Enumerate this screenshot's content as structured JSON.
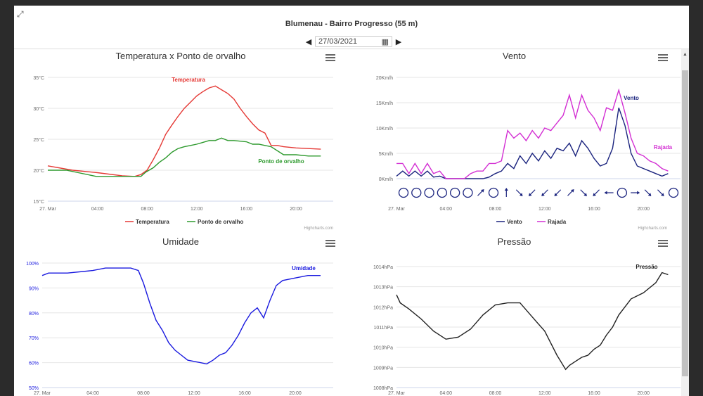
{
  "header": {
    "title": "Blumenau - Bairro Progresso (55 m)",
    "date": "27/03/2021"
  },
  "credit": "Highcharts.com",
  "colors": {
    "temp": "#e53935",
    "dew": "#2e9a2e",
    "wind": "#1a237e",
    "gust": "#d32fd3",
    "humidity": "#1a1adf",
    "pressure": "#222222"
  },
  "x_ticks": [
    "27. Mar",
    "04:00",
    "08:00",
    "12:00",
    "16:00",
    "20:00"
  ],
  "chart_data": [
    {
      "type": "line",
      "title": "Temperatura x Ponto de orvalho",
      "x_unit": "hours",
      "xlim": [
        0,
        23
      ],
      "ylim": [
        15,
        35
      ],
      "y_ticks": [
        "15°C",
        "20°C",
        "25°C",
        "30°C",
        "35°C"
      ],
      "series": [
        {
          "name": "Temperatura",
          "color": "#e53935",
          "x": [
            0,
            2,
            4,
            6,
            7,
            7.5,
            8,
            8.5,
            9,
            9.5,
            10,
            10.5,
            11,
            11.5,
            12,
            12.5,
            13,
            13.5,
            14,
            14.5,
            15,
            15.5,
            16,
            16.5,
            17,
            17.5,
            18,
            18.5,
            19,
            20,
            21,
            22
          ],
          "y": [
            20.7,
            20.0,
            19.6,
            19.1,
            19.0,
            19.3,
            20.0,
            21.7,
            23.6,
            25.8,
            27.3,
            28.7,
            30.0,
            31.0,
            32.0,
            32.7,
            33.3,
            33.6,
            33.0,
            32.4,
            31.5,
            30.0,
            28.7,
            27.5,
            26.5,
            26.0,
            24.0,
            24.0,
            23.8,
            23.6,
            23.5,
            23.4
          ]
        },
        {
          "name": "Ponto de orvalho",
          "color": "#2e9a2e",
          "x": [
            0,
            1.5,
            3.9,
            7.5,
            7.9,
            8.5,
            9,
            9.5,
            10,
            10.5,
            11,
            11.5,
            12,
            12.5,
            13,
            13.5,
            14,
            14.5,
            15,
            16,
            16.5,
            17,
            17.5,
            18,
            19,
            20,
            21,
            22
          ],
          "y": [
            20.0,
            20.0,
            19.0,
            19.0,
            19.7,
            20.4,
            21.3,
            22.0,
            22.9,
            23.5,
            23.8,
            24.0,
            24.2,
            24.5,
            24.8,
            24.8,
            25.2,
            24.8,
            24.8,
            24.6,
            24.2,
            24.2,
            24.0,
            23.8,
            22.5,
            22.5,
            22.3,
            22.3
          ]
        }
      ],
      "annotations": [
        {
          "text": "Temperatura",
          "series": 0
        },
        {
          "text": "Ponto de orvalho",
          "series": 1
        }
      ],
      "legend": [
        "Temperatura",
        "Ponto de orvalho"
      ]
    },
    {
      "type": "line",
      "title": "Vento",
      "x_unit": "hours",
      "xlim": [
        0,
        23
      ],
      "ylim": [
        0,
        20
      ],
      "y_ticks": [
        "0Km/h",
        "5Km/h",
        "10Km/h",
        "15Km/h",
        "20Km/h"
      ],
      "series": [
        {
          "name": "Vento",
          "color": "#1a237e",
          "x": [
            0,
            0.5,
            1,
            1.5,
            2,
            2.5,
            3,
            3.5,
            4,
            4.5,
            5,
            5.5,
            6,
            6.5,
            7,
            7.5,
            8,
            8.5,
            9,
            9.5,
            10,
            10.5,
            11,
            11.5,
            12,
            12.5,
            13,
            13.5,
            14,
            14.5,
            15,
            15.5,
            16,
            16.5,
            17,
            17.5,
            18,
            18.5,
            19,
            19.5,
            20,
            20.5,
            21,
            21.5,
            22
          ],
          "y": [
            0.5,
            1.5,
            0.5,
            1.5,
            0.5,
            1.5,
            0.3,
            0.5,
            0,
            0,
            0,
            0,
            0,
            0,
            0,
            0.3,
            1.0,
            1.5,
            3.0,
            2.0,
            4.5,
            3.0,
            5.0,
            3.5,
            5.5,
            4.0,
            6.0,
            5.5,
            7.0,
            4.5,
            7.5,
            6.0,
            4.0,
            2.5,
            3.0,
            6.0,
            14.0,
            10.5,
            5.0,
            2.5,
            2.0,
            1.5,
            1.0,
            0.5,
            1.0
          ]
        },
        {
          "name": "Rajada",
          "color": "#d32fd3",
          "x": [
            0,
            0.5,
            1,
            1.5,
            2,
            2.5,
            3,
            3.5,
            4,
            4.5,
            5,
            5.5,
            6,
            6.5,
            7,
            7.5,
            8,
            8.5,
            9,
            9.5,
            10,
            10.5,
            11,
            11.5,
            12,
            12.5,
            13,
            13.5,
            14,
            14.5,
            15,
            15.5,
            16,
            16.5,
            17,
            17.5,
            18,
            18.5,
            19,
            19.5,
            20,
            20.5,
            21,
            21.5,
            22
          ],
          "y": [
            3.0,
            3.0,
            1.0,
            3.0,
            1.0,
            3.0,
            1.0,
            1.5,
            0,
            0,
            0,
            0,
            1.0,
            1.5,
            1.5,
            3.0,
            3.0,
            3.5,
            9.5,
            8.0,
            9.0,
            7.5,
            9.5,
            8.0,
            10.0,
            9.5,
            11.0,
            12.5,
            16.5,
            12.0,
            16.5,
            13.5,
            12.0,
            9.5,
            14.0,
            13.5,
            17.5,
            13.0,
            8.0,
            5.0,
            4.5,
            3.5,
            3.0,
            2.0,
            1.5
          ]
        }
      ],
      "annotations": [
        {
          "text": "Vento",
          "series": 0
        },
        {
          "text": "Rajada",
          "series": 1
        }
      ],
      "legend": [
        "Vento",
        "Rajada"
      ]
    },
    {
      "type": "line",
      "title": "Umidade",
      "x_unit": "hours",
      "xlim": [
        0,
        23
      ],
      "ylim": [
        50,
        100
      ],
      "y_ticks": [
        "50%",
        "60%",
        "70%",
        "80%",
        "90%",
        "100%"
      ],
      "series": [
        {
          "name": "Umidade",
          "color": "#1a1adf",
          "x": [
            0,
            0.5,
            2,
            4,
            5,
            6,
            7,
            7.6,
            8,
            8.5,
            9,
            9.5,
            10,
            10.5,
            11,
            11.5,
            12,
            12.5,
            13,
            13.5,
            14,
            14.5,
            15,
            15.5,
            16,
            16.5,
            17,
            17.5,
            18,
            18.5,
            19,
            20,
            21,
            22
          ],
          "y": [
            95.0,
            96.0,
            96.0,
            97.0,
            98.0,
            98.0,
            98.0,
            97.0,
            92.0,
            84.0,
            77.0,
            73.0,
            68.0,
            65.0,
            63.0,
            61.0,
            60.5,
            60.0,
            59.5,
            61.0,
            63.0,
            64.0,
            67.0,
            71.0,
            76.0,
            80.0,
            82.0,
            78.0,
            85.0,
            91.0,
            93.0,
            94.0,
            95.0,
            95.0
          ]
        }
      ],
      "annotations": [
        {
          "text": "Umidade",
          "series": 0
        }
      ]
    },
    {
      "type": "line",
      "title": "Pressão",
      "x_unit": "hours",
      "xlim": [
        0,
        23
      ],
      "ylim": [
        1008,
        1014
      ],
      "y_ticks": [
        "1008hPa",
        "1009hPa",
        "1010hPa",
        "1011hPa",
        "1012hPa",
        "1013hPa",
        "1014hPa"
      ],
      "series": [
        {
          "name": "Pressão",
          "color": "#222222",
          "x": [
            0,
            0.3,
            1,
            2,
            3,
            4,
            5,
            6,
            7,
            8,
            9,
            10,
            11,
            12,
            13,
            13.7,
            14,
            14.5,
            15,
            15.5,
            16,
            16.5,
            17,
            17.5,
            18,
            18.5,
            19,
            20,
            21,
            21.5,
            22
          ],
          "y": [
            1012.6,
            1012.2,
            1011.9,
            1011.4,
            1010.8,
            1010.4,
            1010.5,
            1010.9,
            1011.6,
            1012.1,
            1012.2,
            1012.2,
            1011.5,
            1010.8,
            1009.6,
            1008.9,
            1009.1,
            1009.3,
            1009.5,
            1009.6,
            1009.9,
            1010.1,
            1010.6,
            1011.0,
            1011.6,
            1012.0,
            1012.4,
            1012.7,
            1013.2,
            1013.7,
            1013.6
          ]
        }
      ],
      "annotations": [
        {
          "text": "Pressão",
          "series": 0
        }
      ]
    }
  ],
  "wind_directions": [
    "calm",
    "calm",
    "calm",
    "calm",
    "calm",
    "calm",
    "NE",
    "calm",
    "N",
    "SE",
    "SW",
    "SW",
    "SW",
    "NE",
    "SE",
    "SW",
    "W",
    "calm",
    "E",
    "SE",
    "SE",
    "calm"
  ]
}
